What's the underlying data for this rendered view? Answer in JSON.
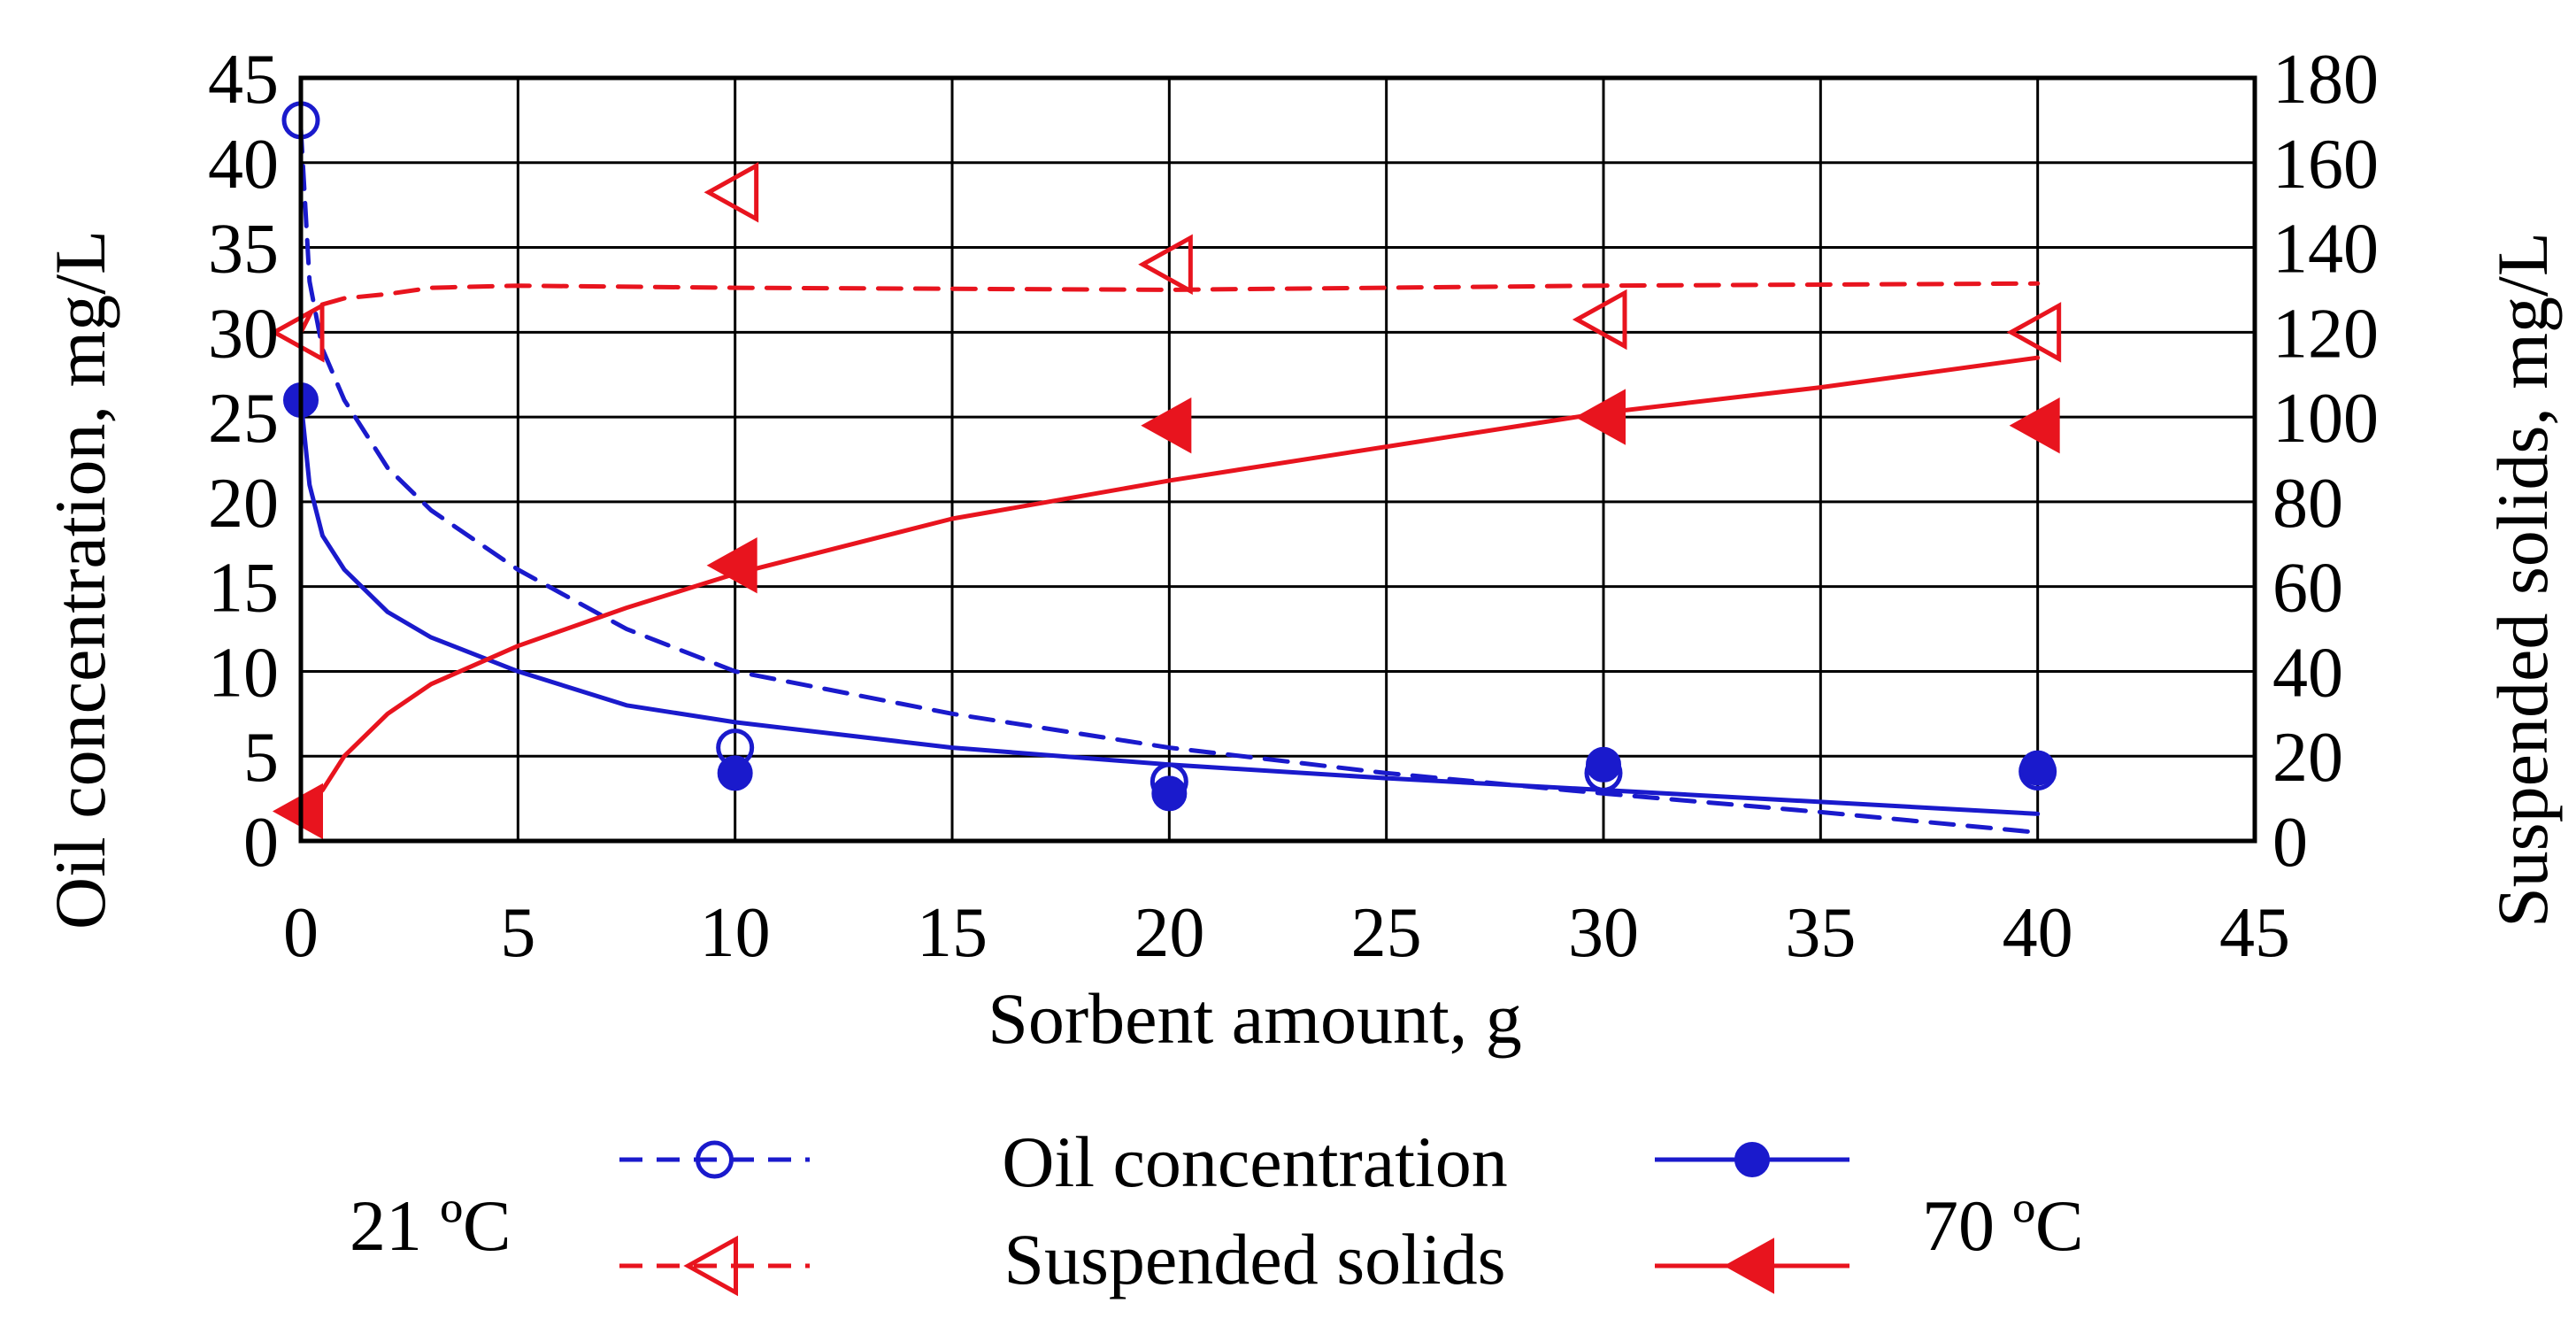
{
  "chart_data": {
    "type": "line",
    "x_label": "Sorbent amount, g",
    "y_left_label": "Oil concentration, mg/L",
    "y_right_label": "Suspended solids, mg/L",
    "x_range": [
      0,
      45
    ],
    "y_left_range": [
      0,
      45
    ],
    "y_right_range": [
      0,
      180
    ],
    "x_ticks": [
      "0",
      "5",
      "10",
      "15",
      "20",
      "25",
      "30",
      "35",
      "40",
      "45"
    ],
    "y_left_ticks": [
      "0",
      "5",
      "10",
      "15",
      "20",
      "25",
      "30",
      "35",
      "40",
      "45"
    ],
    "y_right_ticks": [
      "0",
      "20",
      "40",
      "60",
      "80",
      "100",
      "120",
      "140",
      "160",
      "180"
    ],
    "grid": true,
    "series": [
      {
        "name": "Oil concentration 21 °C",
        "axis": "left",
        "color": "#1a1acc",
        "marker": "open-circle",
        "line": "dashed",
        "points": [
          [
            0,
            42.5
          ],
          [
            10,
            5.5
          ],
          [
            20,
            3.5
          ],
          [
            30,
            4.0
          ],
          [
            40,
            4.1
          ]
        ],
        "fit": [
          [
            0,
            42
          ],
          [
            0.2,
            33
          ],
          [
            0.5,
            29
          ],
          [
            1,
            26
          ],
          [
            2,
            22
          ],
          [
            3,
            19.5
          ],
          [
            5,
            16
          ],
          [
            7.5,
            12.5
          ],
          [
            10,
            10
          ],
          [
            15,
            7.5
          ],
          [
            20,
            5.5
          ],
          [
            25,
            4.0
          ],
          [
            30,
            2.8
          ],
          [
            35,
            1.7
          ],
          [
            40,
            0.5
          ]
        ]
      },
      {
        "name": "Oil concentration 70 °C",
        "axis": "left",
        "color": "#1a1acc",
        "marker": "filled-circle",
        "line": "solid",
        "points": [
          [
            0,
            26.0
          ],
          [
            10,
            4.0
          ],
          [
            20,
            2.8
          ],
          [
            30,
            4.5
          ],
          [
            40,
            4.3
          ]
        ],
        "fit": [
          [
            0,
            26
          ],
          [
            0.2,
            21
          ],
          [
            0.5,
            18
          ],
          [
            1,
            16
          ],
          [
            2,
            13.5
          ],
          [
            3,
            12
          ],
          [
            5,
            10
          ],
          [
            7.5,
            8
          ],
          [
            10,
            7
          ],
          [
            15,
            5.5
          ],
          [
            20,
            4.5
          ],
          [
            25,
            3.7
          ],
          [
            30,
            3.0
          ],
          [
            35,
            2.3
          ],
          [
            40,
            1.6
          ]
        ]
      },
      {
        "name": "Suspended solids 21 °C",
        "axis": "right",
        "color": "#e8141e",
        "marker": "open-triangle-left",
        "line": "dashed",
        "points": [
          [
            0,
            120
          ],
          [
            10,
            153
          ],
          [
            20,
            136
          ],
          [
            30,
            123
          ],
          [
            40,
            120
          ]
        ],
        "fit": [
          [
            0,
            120
          ],
          [
            0.3,
            126
          ],
          [
            1,
            128
          ],
          [
            2,
            129
          ],
          [
            3,
            130.5
          ],
          [
            5,
            131
          ],
          [
            10,
            130.5
          ],
          [
            20,
            130
          ],
          [
            30,
            131
          ],
          [
            40,
            131.5
          ]
        ]
      },
      {
        "name": "Suspended solids 70 °C",
        "axis": "right",
        "color": "#e8141e",
        "marker": "filled-triangle-left",
        "line": "solid",
        "points": [
          [
            0,
            7
          ],
          [
            10,
            65
          ],
          [
            20,
            98
          ],
          [
            30,
            100
          ],
          [
            40,
            98
          ]
        ],
        "fit": [
          [
            0,
            7
          ],
          [
            0.5,
            12
          ],
          [
            1,
            20
          ],
          [
            2,
            30
          ],
          [
            3,
            37
          ],
          [
            5,
            46
          ],
          [
            7.5,
            55
          ],
          [
            10,
            63
          ],
          [
            15,
            76
          ],
          [
            20,
            85
          ],
          [
            25,
            93
          ],
          [
            30,
            101
          ],
          [
            35,
            107
          ],
          [
            40,
            114
          ]
        ]
      }
    ]
  },
  "legend": {
    "row1_label": "Oil concentration",
    "row2_label": "Suspended solids",
    "left_temp": "21 ºC",
    "right_temp": "70 ºC"
  }
}
